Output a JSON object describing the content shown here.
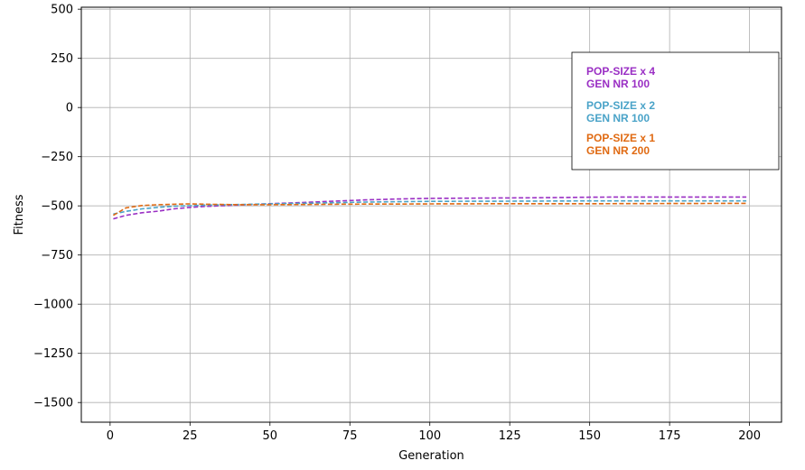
{
  "chart_data": {
    "type": "line",
    "xlabel": "Generation",
    "ylabel": "Fitness",
    "xlim": [
      -9,
      210
    ],
    "ylim": [
      -1600,
      510
    ],
    "x_ticks": [
      0,
      25,
      50,
      75,
      100,
      125,
      150,
      175,
      200
    ],
    "y_ticks": [
      500,
      250,
      0,
      -250,
      -500,
      -750,
      -1000,
      -1250,
      -1500
    ],
    "x_tick_labels": [
      "0",
      "25",
      "50",
      "75",
      "100",
      "125",
      "150",
      "175",
      "200"
    ],
    "y_tick_labels": [
      "500",
      "250",
      "0",
      "−250",
      "−500",
      "−750",
      "−1000",
      "−1250",
      "−1500"
    ],
    "grid": true,
    "legend_position": "upper-right",
    "series": [
      {
        "name": "POP-SIZE x 4\nGEN NR 100",
        "legend_lines": [
          "POP-SIZE x 4",
          "GEN NR 100"
        ],
        "color": "#9a2fc4",
        "x": [
          1,
          5,
          10,
          15,
          20,
          25,
          30,
          40,
          50,
          60,
          70,
          80,
          90,
          100,
          110,
          120,
          130,
          140,
          150,
          160,
          175,
          199
        ],
        "y": [
          -566,
          -548,
          -535,
          -527,
          -515,
          -508,
          -503,
          -496,
          -489,
          -483,
          -476,
          -470,
          -465,
          -462,
          -461,
          -460,
          -459,
          -458,
          -456,
          -455,
          -455,
          -455
        ]
      },
      {
        "name": "POP-SIZE x 2\nGEN NR 100",
        "legend_lines": [
          "POP-SIZE x 2",
          "GEN NR 100"
        ],
        "color": "#4aa3c8",
        "x": [
          1,
          5,
          10,
          15,
          20,
          25,
          30,
          40,
          50,
          60,
          70,
          80,
          90,
          100,
          125,
          150,
          175,
          199
        ],
        "y": [
          -542,
          -528,
          -515,
          -508,
          -502,
          -499,
          -496,
          -493,
          -490,
          -487,
          -484,
          -481,
          -479,
          -477,
          -476,
          -475,
          -475,
          -475
        ]
      },
      {
        "name": "POP-SIZE x 1\nGEN NR 200",
        "legend_lines": [
          "POP-SIZE x 1",
          "GEN NR 200"
        ],
        "color": "#e06a12",
        "x": [
          1,
          5,
          10,
          15,
          20,
          25,
          30,
          40,
          50,
          60,
          70,
          80,
          90,
          100,
          125,
          150,
          175,
          199
        ],
        "y": [
          -548,
          -510,
          -498,
          -494,
          -492,
          -490,
          -492,
          -494,
          -494,
          -493,
          -492,
          -491,
          -491,
          -490,
          -489,
          -489,
          -488,
          -487
        ]
      }
    ]
  }
}
